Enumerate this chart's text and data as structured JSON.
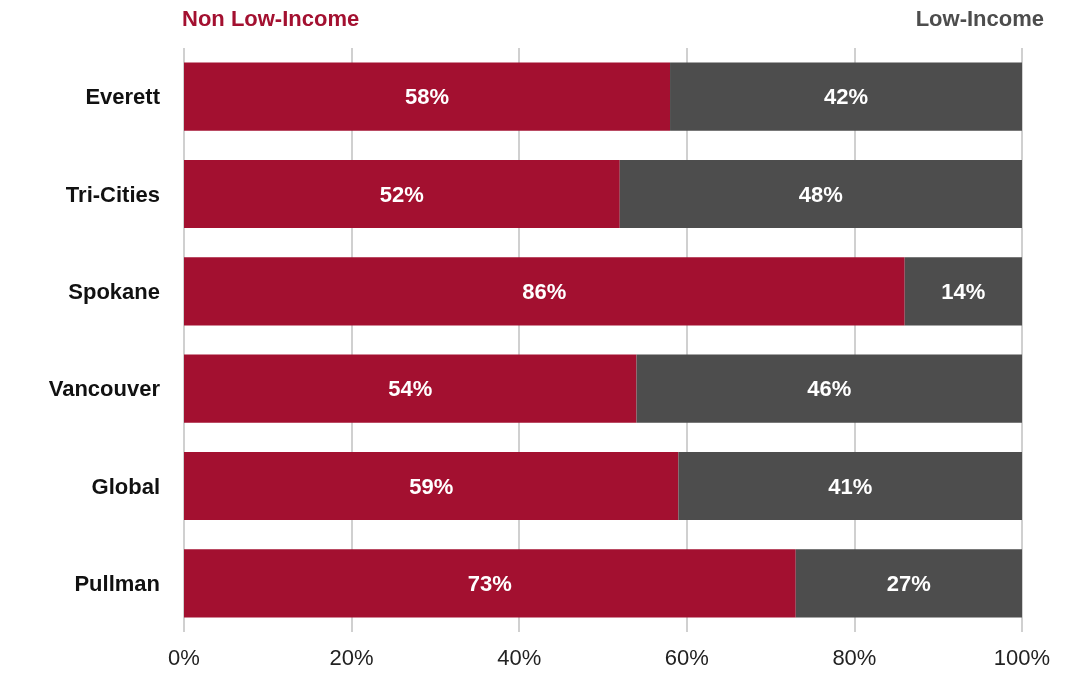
{
  "chart_data": {
    "type": "bar",
    "orientation": "horizontal",
    "stacked": true,
    "categories": [
      "Everett",
      "Tri-Cities",
      "Spokane",
      "Vancouver",
      "Global",
      "Pullman"
    ],
    "series": [
      {
        "name": "Non Low-Income",
        "color": "#a31030",
        "values": [
          58,
          52,
          86,
          54,
          59,
          73
        ],
        "value_labels": [
          "58%",
          "52%",
          "86%",
          "54%",
          "59%",
          "73%"
        ]
      },
      {
        "name": "Low-Income",
        "color": "#4d4d4d",
        "values": [
          42,
          48,
          14,
          46,
          41,
          27
        ],
        "value_labels": [
          "42%",
          "48%",
          "14%",
          "46%",
          "41%",
          "27%"
        ]
      }
    ],
    "xlim": [
      0,
      100
    ],
    "xticks": [
      {
        "value": 0,
        "label": "0%"
      },
      {
        "value": 20,
        "label": "20%"
      },
      {
        "value": 40,
        "label": "40%"
      },
      {
        "value": 60,
        "label": "60%"
      },
      {
        "value": 80,
        "label": "80%"
      },
      {
        "value": 100,
        "label": "100%"
      }
    ],
    "grid": "x",
    "legend": "top"
  }
}
